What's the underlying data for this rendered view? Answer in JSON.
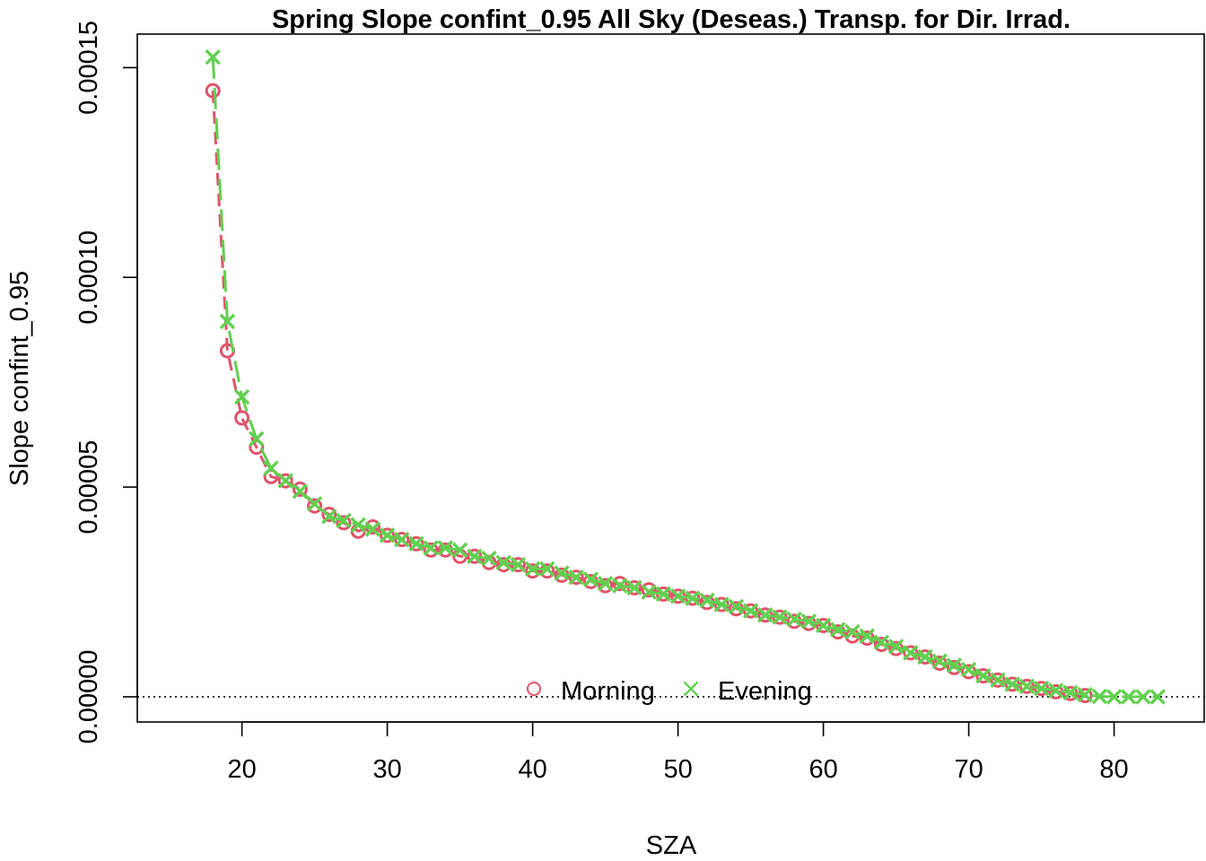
{
  "chart_data": {
    "type": "scatter",
    "title": "Spring Slope confint_0.95 All Sky (Deseas.) Transp. for Dir. Irrad.",
    "xlabel": "SZA",
    "ylabel": "Slope confint_0.95",
    "xlim": [
      12.8,
      86.2
    ],
    "ylim": [
      -6e-06,
      0.000158
    ],
    "x_ticks": [
      20,
      30,
      40,
      50,
      60,
      70,
      80
    ],
    "x_tick_labels": [
      "20",
      "30",
      "40",
      "50",
      "60",
      "70",
      "80"
    ],
    "y_ticks": [
      0,
      5e-05,
      0.0001,
      0.00015
    ],
    "y_tick_labels": [
      "0.00000",
      "0.00005",
      "0.00010",
      "0.00015"
    ],
    "grid": false,
    "reference_line": {
      "y": 0,
      "style": "dotted"
    },
    "legend": {
      "placement": "bottom-center",
      "entries": [
        "Morning",
        "Evening"
      ]
    },
    "series": [
      {
        "name": "Morning",
        "color": "#DF536B",
        "marker": "circle",
        "line": "dashed",
        "x": [
          18,
          19,
          20,
          21,
          22,
          23,
          24,
          25,
          26,
          27,
          28,
          29,
          30,
          31,
          32,
          33,
          34,
          35,
          36,
          37,
          38,
          39,
          40,
          41,
          42,
          43,
          44,
          45,
          46,
          47,
          48,
          49,
          50,
          51,
          52,
          53,
          54,
          55,
          56,
          57,
          58,
          59,
          60,
          61,
          62,
          63,
          64,
          65,
          66,
          67,
          68,
          69,
          70,
          71,
          72,
          73,
          74,
          75,
          76,
          77,
          78
        ],
        "values": [
          0.0001445,
          8.25e-05,
          6.65e-05,
          5.95e-05,
          5.25e-05,
          5.15e-05,
          4.95e-05,
          4.55e-05,
          4.35e-05,
          4.15e-05,
          3.95e-05,
          4.05e-05,
          3.85e-05,
          3.75e-05,
          3.65e-05,
          3.5e-05,
          3.5e-05,
          3.35e-05,
          3.35e-05,
          3.2e-05,
          3.15e-05,
          3.15e-05,
          3e-05,
          3e-05,
          2.9e-05,
          2.85e-05,
          2.75e-05,
          2.65e-05,
          2.7e-05,
          2.6e-05,
          2.55e-05,
          2.45e-05,
          2.4e-05,
          2.35e-05,
          2.25e-05,
          2.2e-05,
          2.1e-05,
          2.05e-05,
          1.95e-05,
          1.9e-05,
          1.8e-05,
          1.75e-05,
          1.7e-05,
          1.55e-05,
          1.45e-05,
          1.4e-05,
          1.25e-05,
          1.15e-05,
          1.05e-05,
          9.5e-06,
          8e-06,
          7e-06,
          6e-06,
          5e-06,
          4e-06,
          3e-06,
          2.5e-06,
          2e-06,
          1.2e-06,
          8e-07,
          3e-07
        ]
      },
      {
        "name": "Evening",
        "color": "#61D04F",
        "marker": "x",
        "line": "long-dashed",
        "x": [
          18,
          19,
          20,
          21,
          22,
          23,
          24,
          25,
          26,
          27,
          28,
          29,
          30,
          31,
          32,
          33,
          34,
          35,
          36,
          37,
          38,
          39,
          40,
          41,
          42,
          43,
          44,
          45,
          46,
          47,
          48,
          49,
          50,
          51,
          52,
          53,
          54,
          55,
          56,
          57,
          58,
          59,
          60,
          61,
          62,
          63,
          64,
          65,
          66,
          67,
          68,
          69,
          70,
          71,
          72,
          73,
          74,
          75,
          76,
          77,
          78,
          79,
          80,
          81,
          82,
          83
        ],
        "values": [
          0.0001525,
          8.95e-05,
          7.15e-05,
          6.15e-05,
          5.45e-05,
          5.15e-05,
          4.9e-05,
          4.6e-05,
          4.3e-05,
          4.2e-05,
          4.1e-05,
          4e-05,
          3.85e-05,
          3.75e-05,
          3.65e-05,
          3.55e-05,
          3.55e-05,
          3.5e-05,
          3.35e-05,
          3.3e-05,
          3.2e-05,
          3.15e-05,
          3.05e-05,
          3.05e-05,
          2.95e-05,
          2.85e-05,
          2.8e-05,
          2.7e-05,
          2.65e-05,
          2.6e-05,
          2.5e-05,
          2.45e-05,
          2.4e-05,
          2.35e-05,
          2.3e-05,
          2.2e-05,
          2.15e-05,
          2.05e-05,
          1.95e-05,
          1.9e-05,
          1.85e-05,
          1.8e-05,
          1.7e-05,
          1.6e-05,
          1.55e-05,
          1.45e-05,
          1.3e-05,
          1.2e-05,
          1.05e-05,
          9.5e-06,
          8.5e-06,
          7.5e-06,
          6.5e-06,
          5e-06,
          4e-06,
          3e-06,
          2.5e-06,
          2e-06,
          1.5e-06,
          1e-06,
          5e-07,
          1e-07,
          0.0,
          0.0,
          0.0,
          0.0
        ]
      }
    ]
  }
}
